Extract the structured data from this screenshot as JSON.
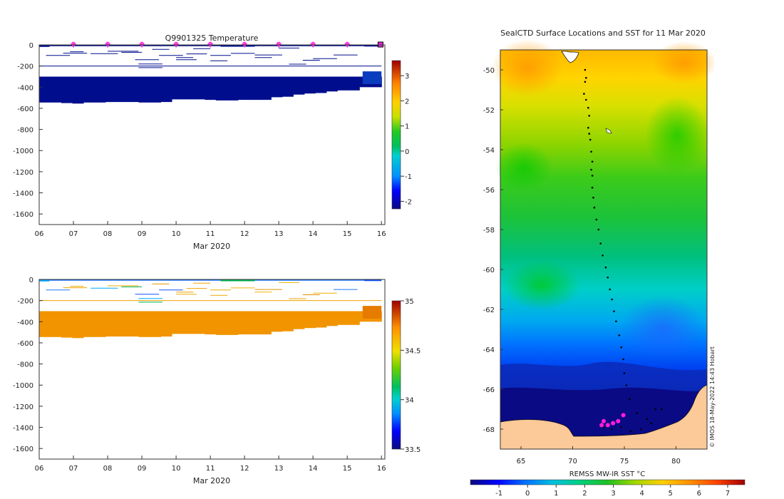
{
  "chart_data": [
    {
      "id": "temperature",
      "type": "heatmap",
      "title": "Q9901325  Temperature",
      "xlabel": "Mar 2020",
      "x_ticks": [
        "06",
        "07",
        "08",
        "09",
        "10",
        "11",
        "12",
        "13",
        "14",
        "15",
        "16"
      ],
      "x_range": [
        6,
        16.1
      ],
      "y_ticks": [
        "0",
        "-200",
        "-400",
        "-600",
        "-800",
        "-1000",
        "-1200",
        "-1400",
        "-1600"
      ],
      "y_range": [
        0,
        -1700
      ],
      "colorbar": {
        "ticks": [
          "3",
          "2",
          "1",
          "0",
          "-1",
          "-2"
        ],
        "range": [
          -2.3,
          3.6
        ]
      },
      "profile_markers_day": [
        7,
        8,
        9,
        10,
        11,
        12,
        13,
        14,
        15
      ],
      "deep_layer": {
        "color": "#000e8e",
        "top_depth": -300,
        "bottom_depth": [
          -545,
          -545,
          -550,
          -555,
          -545,
          -545,
          -540,
          -540,
          -540,
          -545,
          -545,
          -540,
          -515,
          -515,
          -515,
          -520,
          -525,
          -525,
          -520,
          -520,
          -520,
          -495,
          -490,
          -470,
          -460,
          -455,
          -440,
          -430,
          -430,
          -400,
          -400
        ],
        "patch": {
          "x0": 15.45,
          "x1": 16.0,
          "top_depth": -250,
          "bottom_depth": -370,
          "color": "#0a3cc0"
        }
      }
    },
    {
      "id": "salinity",
      "type": "heatmap",
      "title": "",
      "xlabel": "Mar 2020",
      "x_ticks": [
        "06",
        "07",
        "08",
        "09",
        "10",
        "11",
        "12",
        "13",
        "14",
        "15",
        "16"
      ],
      "x_range": [
        6,
        16.1
      ],
      "y_ticks": [
        "0",
        "-200",
        "-400",
        "-600",
        "-800",
        "-1000",
        "-1200",
        "-1400",
        "-1600"
      ],
      "y_range": [
        0,
        -1700
      ],
      "colorbar": {
        "ticks": [
          "35",
          "34.5",
          "34",
          "33.5"
        ],
        "range": [
          33.5,
          35.0
        ]
      },
      "deep_layer": {
        "color": "#f29400",
        "top_depth": -300,
        "bottom_depth": [
          -545,
          -545,
          -550,
          -555,
          -545,
          -545,
          -540,
          -540,
          -540,
          -545,
          -545,
          -540,
          -515,
          -515,
          -515,
          -520,
          -525,
          -525,
          -520,
          -520,
          -520,
          -495,
          -490,
          -470,
          -460,
          -455,
          -440,
          -430,
          -430,
          -400,
          -400
        ],
        "patch": {
          "x0": 15.45,
          "x1": 16.0,
          "top_depth": -250,
          "bottom_depth": -370,
          "color": "#e67b00"
        }
      }
    },
    {
      "id": "sst-map",
      "type": "heatmap",
      "title": "SealCTD Surface Locations and SST for 11 Mar 2020",
      "x_ticks": [
        "65",
        "70",
        "75",
        "80"
      ],
      "x_range": [
        63,
        83
      ],
      "y_ticks": [
        "-50",
        "-52",
        "-54",
        "-56",
        "-58",
        "-60",
        "-62",
        "-64",
        "-66",
        "-68"
      ],
      "y_range": [
        -49,
        -69
      ],
      "colorbar": {
        "label": "REMSS MW-IR SST °C",
        "ticks": [
          "-1",
          "0",
          "1",
          "2",
          "3",
          "4",
          "5",
          "6",
          "7"
        ],
        "range": [
          -2,
          7.6
        ]
      },
      "credit": "© IMOS 18-May-2022 14:43 Hobart",
      "track": [
        [
          71.2,
          -50.0
        ],
        [
          71.3,
          -50.4
        ],
        [
          71.2,
          -50.6
        ],
        [
          71.1,
          -51.2
        ],
        [
          71.3,
          -51.5
        ],
        [
          71.5,
          -51.9
        ],
        [
          71.6,
          -52.3
        ],
        [
          71.5,
          -52.9
        ],
        [
          71.6,
          -53.2
        ],
        [
          71.7,
          -53.5
        ],
        [
          71.8,
          -54.1
        ],
        [
          71.9,
          -54.6
        ],
        [
          71.8,
          -55.0
        ],
        [
          71.9,
          -55.3
        ],
        [
          71.9,
          -55.9
        ],
        [
          72.0,
          -56.4
        ],
        [
          72.1,
          -56.9
        ],
        [
          72.3,
          -57.5
        ],
        [
          72.5,
          -58.0
        ],
        [
          72.7,
          -58.7
        ],
        [
          72.9,
          -59.3
        ],
        [
          73.2,
          -59.9
        ],
        [
          73.4,
          -60.4
        ],
        [
          73.6,
          -61.0
        ],
        [
          73.8,
          -61.5
        ],
        [
          74.0,
          -62.1
        ],
        [
          74.2,
          -62.6
        ],
        [
          74.5,
          -63.3
        ],
        [
          74.7,
          -63.9
        ],
        [
          74.9,
          -64.5
        ],
        [
          75.0,
          -65.2
        ],
        [
          75.2,
          -65.8
        ],
        [
          75.5,
          -66.5
        ],
        [
          76.2,
          -67.2
        ],
        [
          77.2,
          -67.5
        ],
        [
          78.0,
          -67.0
        ],
        [
          78.6,
          -67.0
        ],
        [
          77.6,
          -67.7
        ],
        [
          76.6,
          -68.0
        ],
        [
          75.6,
          -68.1
        ],
        [
          74.7,
          -67.9
        ],
        [
          73.8,
          -68.0
        ],
        [
          73.0,
          -67.9
        ]
      ],
      "highlight": [
        [
          73.0,
          -67.6
        ],
        [
          73.4,
          -67.8
        ],
        [
          73.9,
          -67.7
        ],
        [
          74.4,
          -67.6
        ],
        [
          74.9,
          -67.3
        ],
        [
          72.8,
          -67.8
        ]
      ]
    }
  ]
}
